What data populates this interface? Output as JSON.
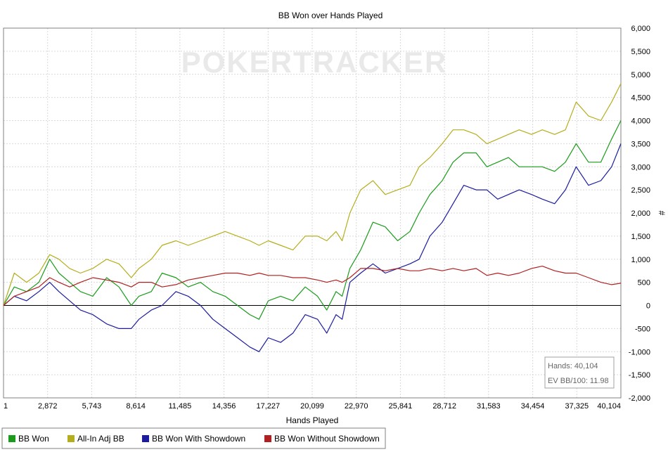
{
  "chart_data": {
    "type": "line",
    "title": "BB Won over Hands Played",
    "xlabel": "Hands Played",
    "ylabel": "#",
    "xlim": [
      1,
      40104
    ],
    "ylim": [
      -2000,
      6000
    ],
    "x_ticks": [
      "1",
      "2,872",
      "5,743",
      "8,614",
      "11,485",
      "14,356",
      "17,227",
      "20,099",
      "22,970",
      "25,841",
      "28,712",
      "31,583",
      "34,454",
      "37,325",
      "40,104"
    ],
    "y_ticks": [
      "6,000",
      "5,500",
      "5,000",
      "4,500",
      "4,000",
      "3,500",
      "3,000",
      "2,500",
      "2,000",
      "1,500",
      "1,000",
      "500",
      "0",
      "-500",
      "-1,000",
      "-1,500",
      "-2,000"
    ],
    "grid": true,
    "legend_position": "bottom",
    "watermark": "POKERTRACKER",
    "info_box": {
      "hands": "Hands: 40,104",
      "ev": "EV BB/100: 11.98"
    },
    "series": [
      {
        "name": "BB Won",
        "color": "#1a9c1a",
        "points": [
          [
            1,
            0
          ],
          [
            700,
            400
          ],
          [
            1500,
            300
          ],
          [
            2300,
            500
          ],
          [
            3000,
            1000
          ],
          [
            3600,
            700
          ],
          [
            4300,
            500
          ],
          [
            5000,
            300
          ],
          [
            5800,
            200
          ],
          [
            6700,
            600
          ],
          [
            7500,
            400
          ],
          [
            8300,
            0
          ],
          [
            8800,
            200
          ],
          [
            9600,
            300
          ],
          [
            10300,
            700
          ],
          [
            11200,
            600
          ],
          [
            12000,
            400
          ],
          [
            12800,
            500
          ],
          [
            13600,
            300
          ],
          [
            14400,
            200
          ],
          [
            15200,
            0
          ],
          [
            16000,
            -200
          ],
          [
            16600,
            -300
          ],
          [
            17200,
            100
          ],
          [
            18000,
            200
          ],
          [
            18800,
            100
          ],
          [
            19600,
            400
          ],
          [
            20400,
            200
          ],
          [
            21000,
            -100
          ],
          [
            21600,
            300
          ],
          [
            22000,
            200
          ],
          [
            22500,
            800
          ],
          [
            23200,
            1200
          ],
          [
            24000,
            1800
          ],
          [
            24800,
            1700
          ],
          [
            25600,
            1400
          ],
          [
            26400,
            1600
          ],
          [
            27000,
            2000
          ],
          [
            27700,
            2400
          ],
          [
            28500,
            2700
          ],
          [
            29200,
            3100
          ],
          [
            29900,
            3300
          ],
          [
            30700,
            3300
          ],
          [
            31400,
            3000
          ],
          [
            32100,
            3100
          ],
          [
            32800,
            3200
          ],
          [
            33500,
            3000
          ],
          [
            34300,
            3000
          ],
          [
            35000,
            3000
          ],
          [
            35800,
            2900
          ],
          [
            36500,
            3100
          ],
          [
            37200,
            3500
          ],
          [
            38000,
            3100
          ],
          [
            38800,
            3100
          ],
          [
            39500,
            3600
          ],
          [
            40104,
            4000
          ]
        ]
      },
      {
        "name": "All-In Adj BB",
        "color": "#b5ad1b",
        "points": [
          [
            1,
            0
          ],
          [
            700,
            700
          ],
          [
            1500,
            500
          ],
          [
            2300,
            700
          ],
          [
            3000,
            1100
          ],
          [
            3600,
            1000
          ],
          [
            4300,
            800
          ],
          [
            5000,
            700
          ],
          [
            5800,
            800
          ],
          [
            6700,
            1000
          ],
          [
            7500,
            900
          ],
          [
            8300,
            600
          ],
          [
            8800,
            800
          ],
          [
            9600,
            1000
          ],
          [
            10300,
            1300
          ],
          [
            11200,
            1400
          ],
          [
            12000,
            1300
          ],
          [
            12800,
            1400
          ],
          [
            13600,
            1500
          ],
          [
            14400,
            1600
          ],
          [
            15200,
            1500
          ],
          [
            16000,
            1400
          ],
          [
            16600,
            1300
          ],
          [
            17200,
            1400
          ],
          [
            18000,
            1300
          ],
          [
            18800,
            1200
          ],
          [
            19600,
            1500
          ],
          [
            20400,
            1500
          ],
          [
            21000,
            1400
          ],
          [
            21600,
            1600
          ],
          [
            22000,
            1400
          ],
          [
            22500,
            2000
          ],
          [
            23200,
            2500
          ],
          [
            24000,
            2700
          ],
          [
            24800,
            2400
          ],
          [
            25600,
            2500
          ],
          [
            26400,
            2600
          ],
          [
            27000,
            3000
          ],
          [
            27700,
            3200
          ],
          [
            28500,
            3500
          ],
          [
            29200,
            3800
          ],
          [
            29900,
            3800
          ],
          [
            30700,
            3700
          ],
          [
            31400,
            3500
          ],
          [
            32100,
            3600
          ],
          [
            32800,
            3700
          ],
          [
            33500,
            3800
          ],
          [
            34300,
            3700
          ],
          [
            35000,
            3800
          ],
          [
            35800,
            3700
          ],
          [
            36500,
            3800
          ],
          [
            37200,
            4400
          ],
          [
            38000,
            4100
          ],
          [
            38800,
            4000
          ],
          [
            39500,
            4400
          ],
          [
            40104,
            4800
          ]
        ]
      },
      {
        "name": "BB Won With Showdown",
        "color": "#1c1ca0",
        "points": [
          [
            1,
            0
          ],
          [
            700,
            200
          ],
          [
            1500,
            100
          ],
          [
            2300,
            300
          ],
          [
            3000,
            500
          ],
          [
            3600,
            300
          ],
          [
            4300,
            100
          ],
          [
            5000,
            -100
          ],
          [
            5800,
            -200
          ],
          [
            6700,
            -400
          ],
          [
            7500,
            -500
          ],
          [
            8300,
            -500
          ],
          [
            8800,
            -300
          ],
          [
            9600,
            -100
          ],
          [
            10300,
            0
          ],
          [
            11200,
            300
          ],
          [
            12000,
            200
          ],
          [
            12800,
            0
          ],
          [
            13600,
            -300
          ],
          [
            14400,
            -500
          ],
          [
            15200,
            -700
          ],
          [
            16000,
            -900
          ],
          [
            16600,
            -1000
          ],
          [
            17200,
            -700
          ],
          [
            18000,
            -800
          ],
          [
            18800,
            -600
          ],
          [
            19600,
            -200
          ],
          [
            20400,
            -300
          ],
          [
            21000,
            -600
          ],
          [
            21600,
            -200
          ],
          [
            22000,
            -300
          ],
          [
            22500,
            500
          ],
          [
            23200,
            700
          ],
          [
            24000,
            900
          ],
          [
            24800,
            700
          ],
          [
            25600,
            800
          ],
          [
            26400,
            900
          ],
          [
            27000,
            1000
          ],
          [
            27700,
            1500
          ],
          [
            28500,
            1800
          ],
          [
            29200,
            2200
          ],
          [
            29900,
            2600
          ],
          [
            30700,
            2500
          ],
          [
            31400,
            2500
          ],
          [
            32100,
            2300
          ],
          [
            32800,
            2400
          ],
          [
            33500,
            2500
          ],
          [
            34300,
            2400
          ],
          [
            35000,
            2300
          ],
          [
            35800,
            2200
          ],
          [
            36500,
            2500
          ],
          [
            37200,
            3000
          ],
          [
            38000,
            2600
          ],
          [
            38800,
            2700
          ],
          [
            39500,
            3000
          ],
          [
            40104,
            3500
          ]
        ]
      },
      {
        "name": "BB Won Without Showdown",
        "color": "#b02020",
        "points": [
          [
            1,
            0
          ],
          [
            700,
            200
          ],
          [
            1500,
            300
          ],
          [
            2300,
            400
          ],
          [
            3000,
            600
          ],
          [
            3600,
            500
          ],
          [
            4300,
            400
          ],
          [
            5000,
            500
          ],
          [
            5800,
            600
          ],
          [
            6700,
            550
          ],
          [
            7500,
            500
          ],
          [
            8300,
            400
          ],
          [
            8800,
            500
          ],
          [
            9600,
            500
          ],
          [
            10300,
            400
          ],
          [
            11200,
            450
          ],
          [
            12000,
            550
          ],
          [
            12800,
            600
          ],
          [
            13600,
            650
          ],
          [
            14400,
            700
          ],
          [
            15200,
            700
          ],
          [
            16000,
            650
          ],
          [
            16600,
            700
          ],
          [
            17200,
            650
          ],
          [
            18000,
            650
          ],
          [
            18800,
            600
          ],
          [
            19600,
            600
          ],
          [
            20400,
            550
          ],
          [
            21000,
            500
          ],
          [
            21600,
            550
          ],
          [
            22000,
            500
          ],
          [
            22500,
            600
          ],
          [
            23200,
            800
          ],
          [
            24000,
            800
          ],
          [
            24800,
            750
          ],
          [
            25600,
            800
          ],
          [
            26400,
            750
          ],
          [
            27000,
            750
          ],
          [
            27700,
            800
          ],
          [
            28500,
            750
          ],
          [
            29200,
            800
          ],
          [
            29900,
            750
          ],
          [
            30700,
            800
          ],
          [
            31400,
            650
          ],
          [
            32100,
            700
          ],
          [
            32800,
            650
          ],
          [
            33500,
            700
          ],
          [
            34300,
            800
          ],
          [
            35000,
            850
          ],
          [
            35800,
            750
          ],
          [
            36500,
            700
          ],
          [
            37200,
            700
          ],
          [
            38000,
            600
          ],
          [
            38800,
            500
          ],
          [
            39500,
            450
          ],
          [
            40104,
            480
          ]
        ]
      }
    ]
  }
}
